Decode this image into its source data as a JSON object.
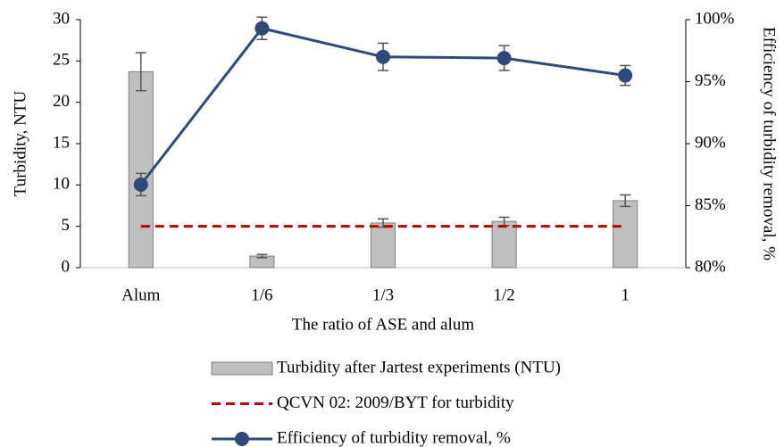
{
  "chart_data": {
    "type": "bar",
    "categories": [
      "Alum",
      "1/6",
      "1/3",
      "1/2",
      "1"
    ],
    "xlabel": "The ratio of ASE and alum",
    "ylabel": "Turbidity, NTU",
    "y2label": "Efficiency of turbidity removal, %",
    "ylim": [
      0,
      30
    ],
    "yticks": [
      0,
      5,
      10,
      15,
      20,
      25,
      30
    ],
    "y2lim": [
      80,
      100
    ],
    "y2ticks": [
      {
        "value": 80,
        "label": "80%"
      },
      {
        "value": 85,
        "label": "85%"
      },
      {
        "value": 90,
        "label": "90%"
      },
      {
        "value": 95,
        "label": "95%"
      },
      {
        "value": 100,
        "label": "100%"
      }
    ],
    "grid": false,
    "legend": "bottom",
    "series": [
      {
        "name": "Turbidity after Jartest experiments (NTU)",
        "type": "bar",
        "color": "#bfbfbf",
        "values": [
          23.7,
          1.4,
          5.4,
          5.6,
          8.1
        ],
        "errors": [
          2.3,
          0.2,
          0.5,
          0.5,
          0.7
        ]
      },
      {
        "name": "QCVN 02: 2009/BYT for turbidity",
        "type": "line",
        "dashed": true,
        "color": "#c00000",
        "values": [
          5,
          5,
          5,
          5,
          5
        ]
      },
      {
        "name": "Efficiency of turbidity removal, %",
        "type": "line",
        "markers": true,
        "axis": "y2",
        "color": "#2e4a7d",
        "values": [
          86.7,
          99.3,
          97.0,
          96.9,
          95.5
        ],
        "errors": [
          0.9,
          0.9,
          1.1,
          1.0,
          0.8
        ]
      }
    ]
  }
}
